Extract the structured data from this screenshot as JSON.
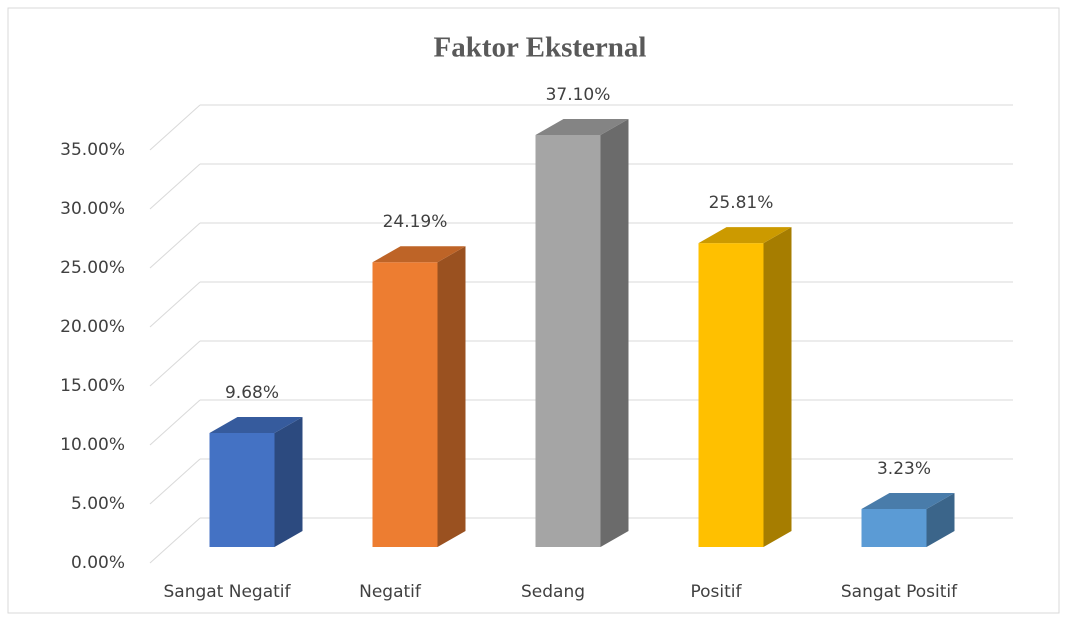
{
  "chart_data": {
    "type": "bar3d",
    "title": "Faktor Eksternal",
    "categories": [
      "Sangat Negatif",
      "Negatif",
      "Sedang",
      "Positif",
      "Sangat Positif"
    ],
    "values": [
      9.68,
      24.19,
      37.1,
      25.81,
      3.23
    ],
    "value_labels": [
      "9.68%",
      "24.19%",
      "37.10%",
      "25.81%",
      "3.23%"
    ],
    "colors": [
      "#4472c4",
      "#ed7d31",
      "#a5a5a5",
      "#ffc000",
      "#5b9bd5"
    ],
    "ylim": [
      0,
      35
    ],
    "yticks": [
      {
        "value": 0,
        "label": "0.00%"
      },
      {
        "value": 5,
        "label": "5.00%"
      },
      {
        "value": 10,
        "label": "10.00%"
      },
      {
        "value": 15,
        "label": "15.00%"
      },
      {
        "value": 20,
        "label": "20.00%"
      },
      {
        "value": 25,
        "label": "25.00%"
      },
      {
        "value": 30,
        "label": "30.00%"
      },
      {
        "value": 35,
        "label": "35.00%"
      }
    ],
    "grid": true
  }
}
